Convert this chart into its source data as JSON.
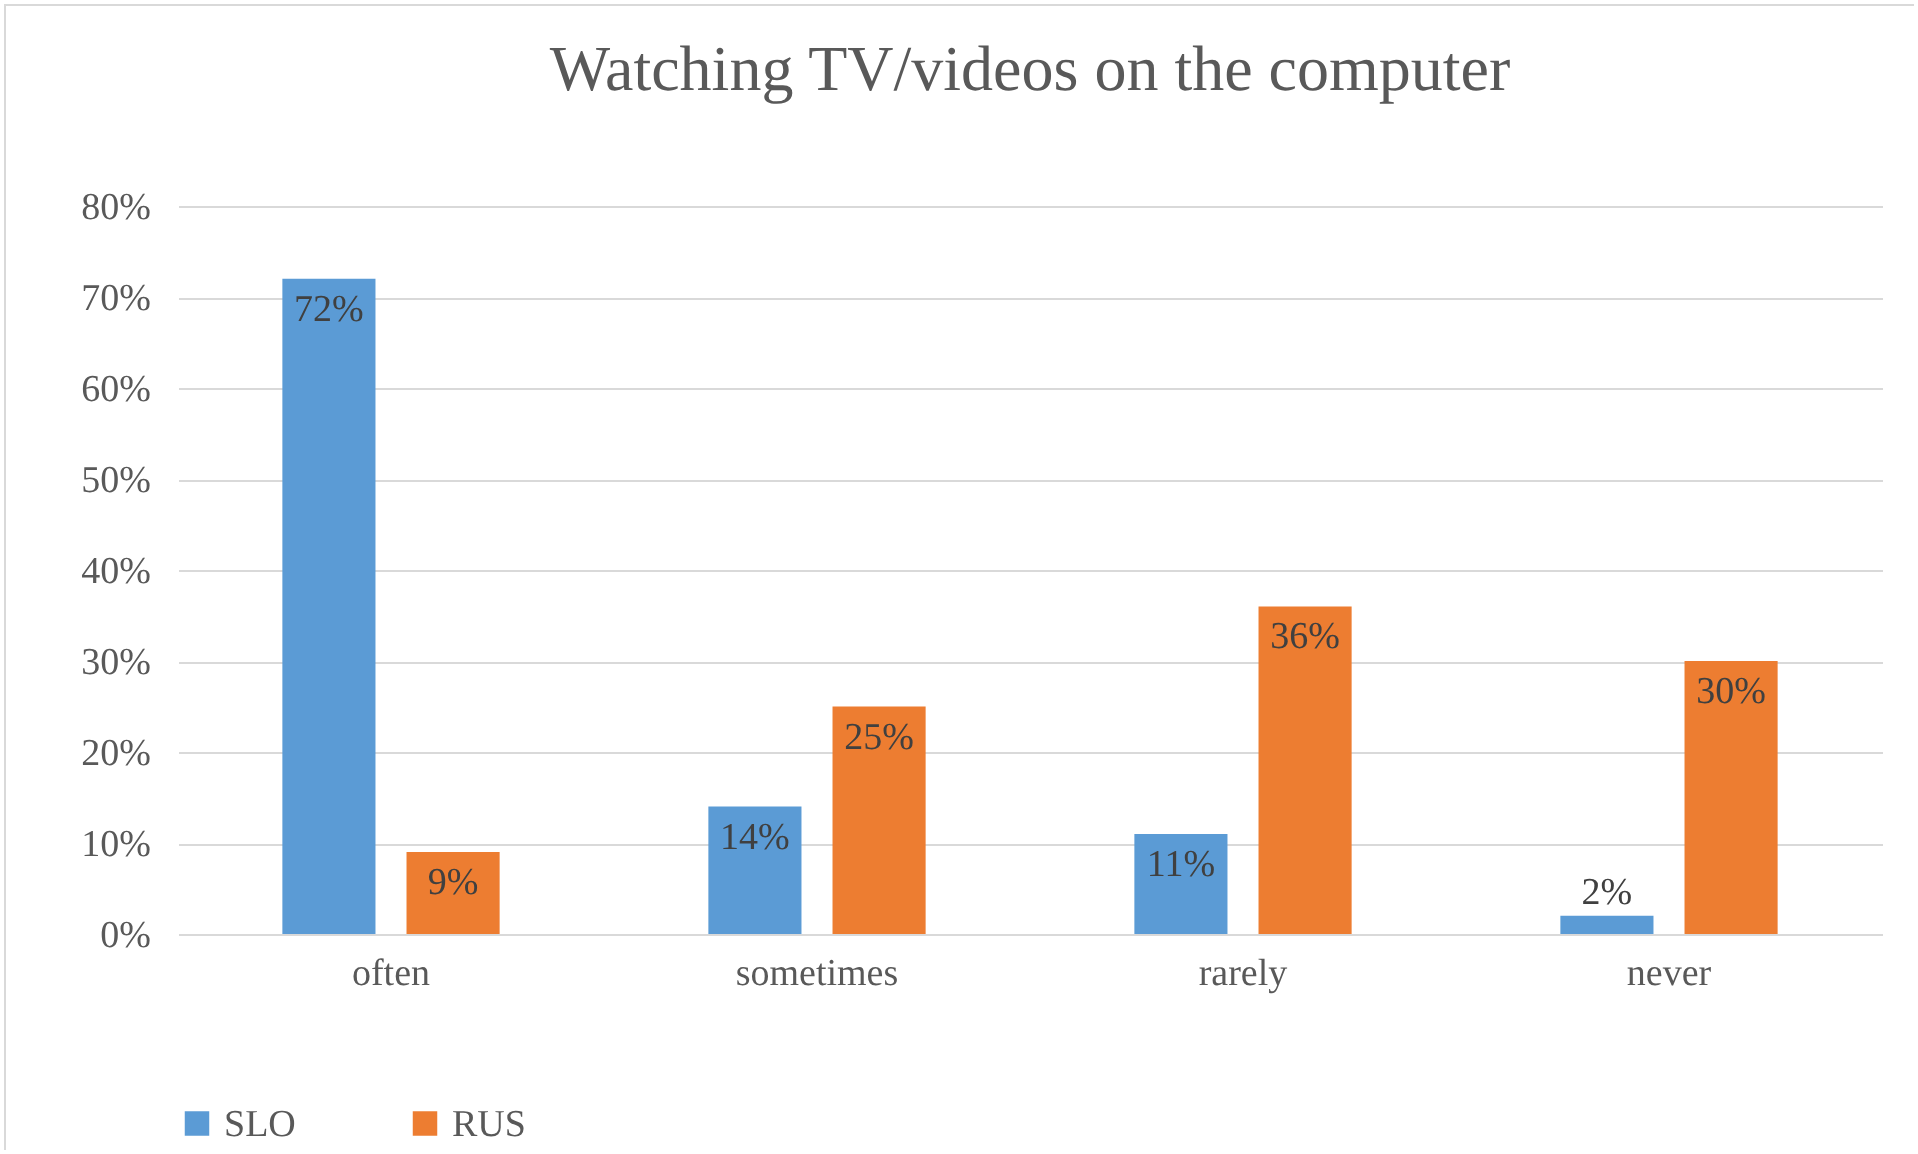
{
  "chart_data": {
    "type": "bar",
    "title": "Watching TV/videos on the computer",
    "categories": [
      "often",
      "sometimes",
      "rarely",
      "never"
    ],
    "series": [
      {
        "name": "SLO",
        "color": "#5b9bd5",
        "values": [
          72,
          14,
          11,
          2
        ],
        "value_labels": [
          "72%",
          "14%",
          "11%",
          "2%"
        ]
      },
      {
        "name": "RUS",
        "color": "#ed7d31",
        "values": [
          9,
          25,
          36,
          30
        ],
        "value_labels": [
          "9%",
          "25%",
          "36%",
          "30%"
        ]
      }
    ],
    "ylim": [
      0,
      80
    ],
    "yticks": [
      {
        "value": 0,
        "label": "0%"
      },
      {
        "value": 10,
        "label": "10%"
      },
      {
        "value": 20,
        "label": "20%"
      },
      {
        "value": 30,
        "label": "30%"
      },
      {
        "value": 40,
        "label": "40%"
      },
      {
        "value": 50,
        "label": "50%"
      },
      {
        "value": 60,
        "label": "60%"
      },
      {
        "value": 70,
        "label": "70%"
      },
      {
        "value": 80,
        "label": "80%"
      }
    ],
    "grid": "y",
    "legend": "bottom"
  }
}
